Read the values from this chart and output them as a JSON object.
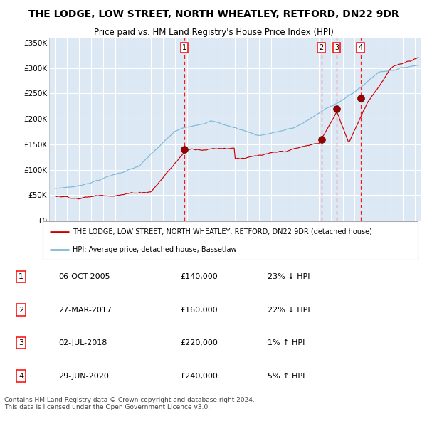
{
  "title": "THE LODGE, LOW STREET, NORTH WHEATLEY, RETFORD, DN22 9DR",
  "subtitle": "Price paid vs. HM Land Registry's House Price Index (HPI)",
  "legend_line1": "THE LODGE, LOW STREET, NORTH WHEATLEY, RETFORD, DN22 9DR (detached house)",
  "legend_line2": "HPI: Average price, detached house, Bassetlaw",
  "footer": "Contains HM Land Registry data © Crown copyright and database right 2024.\nThis data is licensed under the Open Government Licence v3.0.",
  "transactions": [
    {
      "num": 1,
      "date": "06-OCT-2005",
      "price": "£140,000",
      "hpi_rel": "23% ↓ HPI",
      "date_x": 2005.77,
      "price_y": 140000
    },
    {
      "num": 2,
      "date": "27-MAR-2017",
      "price": "£160,000",
      "hpi_rel": "22% ↓ HPI",
      "date_x": 2017.23,
      "price_y": 160000
    },
    {
      "num": 3,
      "date": "02-JUL-2018",
      "price": "£220,000",
      "hpi_rel": "1% ↑ HPI",
      "date_x": 2018.5,
      "price_y": 220000
    },
    {
      "num": 4,
      "date": "29-JUN-2020",
      "price": "£240,000",
      "hpi_rel": "5% ↑ HPI",
      "date_x": 2020.49,
      "price_y": 240000
    }
  ],
  "hpi_color": "#7fb8d8",
  "price_color": "#cc0000",
  "marker_color": "#990000",
  "background_color": "#dce9f5",
  "grid_color": "#ffffff",
  "ylim": [
    0,
    360000
  ],
  "xlim_start": 1994.5,
  "xlim_end": 2025.5,
  "xticks": [
    1995,
    1996,
    1997,
    1998,
    1999,
    2000,
    2001,
    2002,
    2003,
    2004,
    2005,
    2006,
    2007,
    2008,
    2009,
    2010,
    2011,
    2012,
    2013,
    2014,
    2015,
    2016,
    2017,
    2018,
    2019,
    2020,
    2021,
    2022,
    2023,
    2024,
    2025
  ],
  "yticks": [
    0,
    50000,
    100000,
    150000,
    200000,
    250000,
    300000,
    350000
  ],
  "fig_width": 6.0,
  "fig_height": 6.2,
  "dpi": 100
}
